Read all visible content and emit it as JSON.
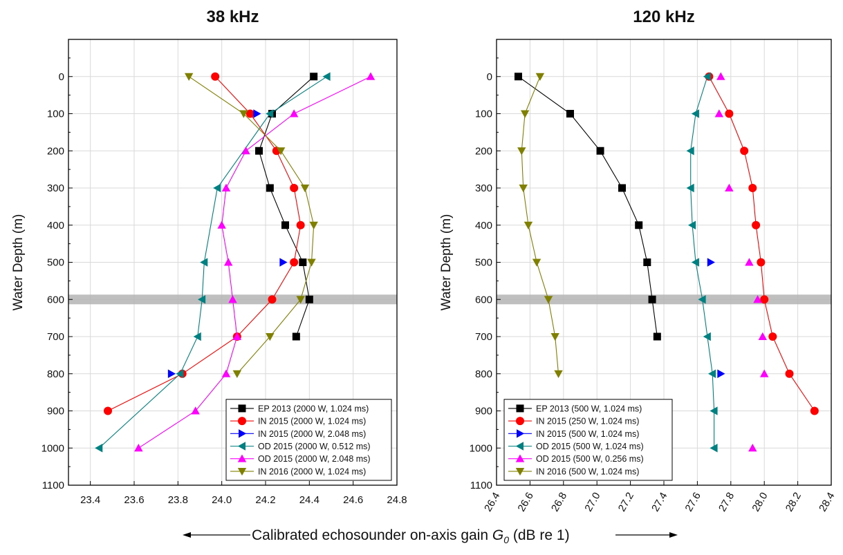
{
  "caption": {
    "arrow_left": "⟵",
    "text": "Calibrated echosounder on-axis gain ",
    "symbol": "G",
    "subscript": "0",
    "unit": " (dB re 1)",
    "arrow_right": "⟶"
  },
  "chart_data": [
    {
      "type": "line",
      "title": "38 kHz",
      "xlabel": "",
      "ylabel": "Water Depth (m)",
      "xlim": [
        23.3,
        24.8
      ],
      "ylim": [
        1100,
        -100
      ],
      "y_inverted": true,
      "xticks": [
        "23.4",
        "23.6",
        "23.8",
        "24.0",
        "24.2",
        "24.4",
        "24.6",
        "24.8"
      ],
      "yticks": [
        "0",
        "100",
        "200",
        "300",
        "400",
        "500",
        "600",
        "700",
        "800",
        "900",
        "1000",
        "1100"
      ],
      "xtick_rotation": 0,
      "grid": true,
      "shaded_band_depth": 600,
      "legend_position": "bottom-right",
      "series": [
        {
          "name": "EP 2013 (2000 W, 1.024 ms)",
          "color": "#000000",
          "marker": "square",
          "connected": true,
          "points": [
            [
              24.42,
              0
            ],
            [
              24.23,
              100
            ],
            [
              24.17,
              200
            ],
            [
              24.22,
              300
            ],
            [
              24.29,
              400
            ],
            [
              24.37,
              500
            ],
            [
              24.4,
              600
            ],
            [
              24.34,
              700
            ]
          ]
        },
        {
          "name": "IN 2015 (2000 W, 1.024 ms)",
          "color": "#ff0000",
          "marker": "circle",
          "connected": true,
          "points": [
            [
              23.97,
              0
            ],
            [
              24.13,
              100
            ],
            [
              24.25,
              200
            ],
            [
              24.33,
              300
            ],
            [
              24.36,
              400
            ],
            [
              24.33,
              500
            ],
            [
              24.23,
              600
            ],
            [
              24.07,
              700
            ],
            [
              23.82,
              800
            ],
            [
              23.48,
              900
            ]
          ]
        },
        {
          "name": "IN 2015 (2000 W, 2.048 ms)",
          "color": "#0000ff",
          "marker": "triangle-right",
          "connected": false,
          "points": [
            [
              24.16,
              100
            ],
            [
              24.28,
              500
            ],
            [
              23.77,
              800
            ]
          ]
        },
        {
          "name": "OD 2015 (2000 W, 0.512 ms)",
          "color": "#008080",
          "marker": "triangle-left",
          "connected": true,
          "points": [
            [
              24.48,
              0
            ],
            [
              24.22,
              100
            ],
            [
              23.98,
              300
            ],
            [
              23.92,
              500
            ],
            [
              23.91,
              600
            ],
            [
              23.89,
              700
            ],
            [
              23.81,
              800
            ],
            [
              23.44,
              1000
            ]
          ]
        },
        {
          "name": "OD 2015 (2000 W, 2.048 ms)",
          "color": "#ff00ff",
          "marker": "triangle-up",
          "connected": true,
          "points": [
            [
              24.68,
              0
            ],
            [
              24.33,
              100
            ],
            [
              24.11,
              200
            ],
            [
              24.02,
              300
            ],
            [
              24.0,
              400
            ],
            [
              24.03,
              500
            ],
            [
              24.05,
              600
            ],
            [
              24.07,
              700
            ],
            [
              24.02,
              800
            ],
            [
              23.88,
              900
            ],
            [
              23.62,
              1000
            ]
          ]
        },
        {
          "name": "IN 2016 (2000 W, 1.024 ms)",
          "color": "#808000",
          "marker": "triangle-down",
          "connected": true,
          "points": [
            [
              23.85,
              0
            ],
            [
              24.1,
              100
            ],
            [
              24.27,
              200
            ],
            [
              24.38,
              300
            ],
            [
              24.42,
              400
            ],
            [
              24.41,
              500
            ],
            [
              24.36,
              600
            ],
            [
              24.22,
              700
            ],
            [
              24.07,
              800
            ]
          ]
        }
      ]
    },
    {
      "type": "line",
      "title": "120 kHz",
      "xlabel": "",
      "ylabel": "Water Depth (m)",
      "xlim": [
        26.4,
        28.4
      ],
      "ylim": [
        1100,
        -100
      ],
      "y_inverted": true,
      "xticks": [
        "26.4",
        "26.6",
        "26.8",
        "27.0",
        "27.2",
        "27.4",
        "27.6",
        "27.8",
        "28.0",
        "28.2",
        "28.4"
      ],
      "yticks": [
        "0",
        "100",
        "200",
        "300",
        "400",
        "500",
        "600",
        "700",
        "800",
        "900",
        "1000",
        "1100"
      ],
      "xtick_rotation": -60,
      "grid": true,
      "shaded_band_depth": 600,
      "legend_position": "bottom-left",
      "series": [
        {
          "name": "EP 2013 (500 W, 1.024 ms)",
          "color": "#000000",
          "marker": "square",
          "connected": true,
          "points": [
            [
              26.53,
              0
            ],
            [
              26.84,
              100
            ],
            [
              27.02,
              200
            ],
            [
              27.15,
              300
            ],
            [
              27.25,
              400
            ],
            [
              27.3,
              500
            ],
            [
              27.33,
              600
            ],
            [
              27.36,
              700
            ]
          ]
        },
        {
          "name": "IN 2015 (250 W, 1.024 ms)",
          "color": "#ff0000",
          "marker": "circle",
          "connected": true,
          "points": [
            [
              27.67,
              0
            ],
            [
              27.79,
              100
            ],
            [
              27.88,
              200
            ],
            [
              27.93,
              300
            ],
            [
              27.95,
              400
            ],
            [
              27.98,
              500
            ],
            [
              28.0,
              600
            ],
            [
              28.05,
              700
            ],
            [
              28.15,
              800
            ],
            [
              28.3,
              900
            ]
          ]
        },
        {
          "name": "IN 2015 (500 W, 1.024 ms)",
          "color": "#0000ff",
          "marker": "triangle-right",
          "connected": false,
          "points": [
            [
              27.68,
              500
            ],
            [
              27.74,
              800
            ]
          ]
        },
        {
          "name": "OD 2015 (500 W, 1.024 ms)",
          "color": "#008080",
          "marker": "triangle-left",
          "connected": true,
          "points": [
            [
              27.66,
              0
            ],
            [
              27.59,
              100
            ],
            [
              27.56,
              200
            ],
            [
              27.56,
              300
            ],
            [
              27.57,
              400
            ],
            [
              27.59,
              500
            ],
            [
              27.63,
              600
            ],
            [
              27.66,
              700
            ],
            [
              27.69,
              800
            ],
            [
              27.7,
              900
            ],
            [
              27.7,
              1000
            ]
          ]
        },
        {
          "name": "OD 2015 (500 W, 0.256 ms)",
          "color": "#ff00ff",
          "marker": "triangle-up",
          "connected": false,
          "points": [
            [
              27.74,
              0
            ],
            [
              27.73,
              100
            ],
            [
              27.79,
              300
            ],
            [
              27.91,
              500
            ],
            [
              27.96,
              600
            ],
            [
              27.99,
              700
            ],
            [
              28.0,
              800
            ],
            [
              27.93,
              1000
            ]
          ]
        },
        {
          "name": "IN 2016 (500 W, 1.024 ms)",
          "color": "#808000",
          "marker": "triangle-down",
          "connected": true,
          "points": [
            [
              26.66,
              0
            ],
            [
              26.57,
              100
            ],
            [
              26.55,
              200
            ],
            [
              26.56,
              300
            ],
            [
              26.59,
              400
            ],
            [
              26.64,
              500
            ],
            [
              26.71,
              600
            ],
            [
              26.75,
              700
            ],
            [
              26.77,
              800
            ]
          ]
        }
      ]
    }
  ]
}
